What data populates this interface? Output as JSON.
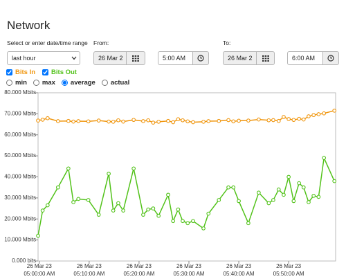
{
  "header": {
    "title": "Network"
  },
  "form": {
    "range_label": "Select or enter date/time range",
    "range_select": "last hour",
    "from_label": "From:",
    "from_date": "26 Mar 2",
    "from_time": "5:00 AM",
    "to_label": "To:",
    "to_date": "26 Mar 2",
    "to_time": "6:00 AM",
    "modes": [
      "min",
      "max",
      "average",
      "actual"
    ],
    "selected_mode": "average"
  },
  "chart_data": {
    "type": "line",
    "x": [
      "2023-03-26 04:59:45",
      "2023-03-26 05:00:40",
      "2023-03-26 05:01:40",
      "2023-03-26 05:03:45",
      "2023-03-26 05:05:50",
      "2023-03-26 05:06:50",
      "2023-03-26 05:07:50",
      "2023-03-26 05:09:50",
      "2023-03-26 05:11:55",
      "2023-03-26 05:13:55",
      "2023-03-26 05:14:50",
      "2023-03-26 05:15:50",
      "2023-03-26 05:16:50",
      "2023-03-26 05:18:55",
      "2023-03-26 05:20:50",
      "2023-03-26 05:21:50",
      "2023-03-26 05:22:50",
      "2023-03-26 05:23:55",
      "2023-03-26 05:25:50",
      "2023-03-26 05:26:50",
      "2023-03-26 05:27:50",
      "2023-03-26 05:28:45",
      "2023-03-26 05:29:45",
      "2023-03-26 05:30:50",
      "2023-03-26 05:32:55",
      "2023-03-26 05:33:55",
      "2023-03-26 05:36:00",
      "2023-03-26 05:37:55",
      "2023-03-26 05:38:55",
      "2023-03-26 05:40:00",
      "2023-03-26 05:41:55",
      "2023-03-26 05:44:00",
      "2023-03-26 05:46:00",
      "2023-03-26 05:46:55",
      "2023-03-26 05:48:00",
      "2023-03-26 05:49:00",
      "2023-03-26 05:50:00",
      "2023-03-26 05:51:00",
      "2023-03-26 05:52:05",
      "2023-03-26 05:53:00",
      "2023-03-26 05:54:00",
      "2023-03-26 05:55:00",
      "2023-03-26 05:56:00",
      "2023-03-26 05:57:05",
      "2023-03-26 05:59:10"
    ],
    "series": [
      {
        "name": "Bits In",
        "color": "#f0960e",
        "values": [
          66.8,
          67.2,
          67.9,
          66.5,
          66.6,
          66.3,
          66.5,
          66.4,
          66.8,
          66.3,
          66.2,
          66.9,
          66.3,
          67.1,
          66.5,
          66.9,
          65.8,
          66.2,
          66.6,
          66.0,
          67.4,
          66.9,
          66.4,
          66.0,
          66.2,
          66.5,
          66.6,
          67.0,
          66.4,
          66.7,
          66.8,
          67.3,
          66.9,
          67.0,
          66.6,
          68.5,
          67.5,
          67.1,
          67.6,
          67.3,
          68.8,
          69.4,
          69.8,
          70.2,
          71.5
        ]
      },
      {
        "name": "Bits Out",
        "color": "#52c21a",
        "values": [
          12,
          24,
          26.5,
          35,
          44,
          28,
          29.5,
          29,
          22,
          41.5,
          24,
          27.5,
          24,
          44,
          22,
          24.5,
          25,
          21.5,
          31.5,
          19,
          24.5,
          19,
          18,
          19,
          15.5,
          22.5,
          29,
          35,
          35,
          28.5,
          18,
          32.5,
          27.5,
          29,
          34,
          31.5,
          40,
          28.5,
          37,
          35,
          28,
          31,
          30.5,
          49,
          38
        ]
      }
    ],
    "xlim": [
      "2023-03-26 04:59:45",
      "2023-03-26 05:59:25"
    ],
    "xticks": [
      {
        "value": "2023-03-26 05:00:00",
        "label": "26 Mar 23 05:00:00 AM"
      },
      {
        "value": "2023-03-26 05:10:00",
        "label": "26 Mar 23 05:10:00 AM"
      },
      {
        "value": "2023-03-26 05:20:00",
        "label": "26 Mar 23 05:20:00 AM"
      },
      {
        "value": "2023-03-26 05:30:00",
        "label": "26 Mar 23 05:30:00 AM"
      },
      {
        "value": "2023-03-26 05:40:00",
        "label": "26 Mar 23 05:40:00 AM"
      },
      {
        "value": "2023-03-26 05:50:00",
        "label": "26 Mar 23 05:50:00 AM"
      }
    ],
    "ylim": [
      0,
      80
    ],
    "yticks": [
      {
        "value": 0,
        "label": "0.000 bits"
      },
      {
        "value": 10,
        "label": "10.000 Mbits"
      },
      {
        "value": 20,
        "label": "20.000 Mbits"
      },
      {
        "value": 30,
        "label": "30.000 Mbits"
      },
      {
        "value": 40,
        "label": "40.000 Mbits"
      },
      {
        "value": 50,
        "label": "50.000 Mbits"
      },
      {
        "value": 60,
        "label": "60.000 Mbits"
      },
      {
        "value": 70,
        "label": "70.000 Mbits"
      },
      {
        "value": 80,
        "label": "80.000 Mbits"
      }
    ]
  }
}
